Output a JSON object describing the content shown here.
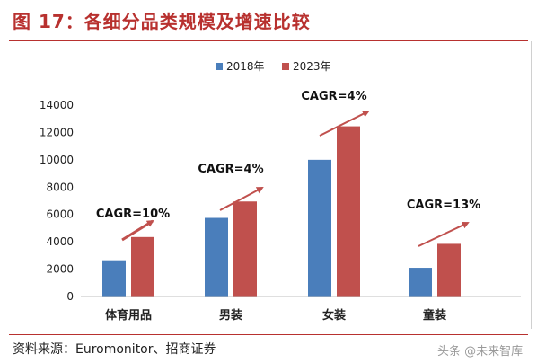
{
  "header": {
    "title": "图 17：各细分品类规模及增速比较"
  },
  "footer": {
    "source": "资料来源：Euromonitor、招商证券",
    "watermark": "头条 @未来智库"
  },
  "colors": {
    "series_2018": "#4a7ebb",
    "series_2023": "#c0504d",
    "arrow": "#c0504d",
    "title": "#b8312f"
  },
  "chart_data": {
    "type": "bar",
    "categories": [
      "体育用品",
      "男装",
      "女装",
      "童装"
    ],
    "series": [
      {
        "name": "2018年",
        "values": [
          2650,
          5750,
          10000,
          2100
        ]
      },
      {
        "name": "2023年",
        "values": [
          4350,
          6950,
          12450,
          3850
        ]
      }
    ],
    "yticks": [
      0,
      2000,
      4000,
      6000,
      8000,
      10000,
      12000,
      14000
    ],
    "ylim": [
      0,
      14000
    ],
    "legend_position": "top-right",
    "grid": false,
    "annotations": [
      "CAGR=10%",
      "CAGR=4%",
      "CAGR=4%",
      "CAGR=13%"
    ]
  }
}
